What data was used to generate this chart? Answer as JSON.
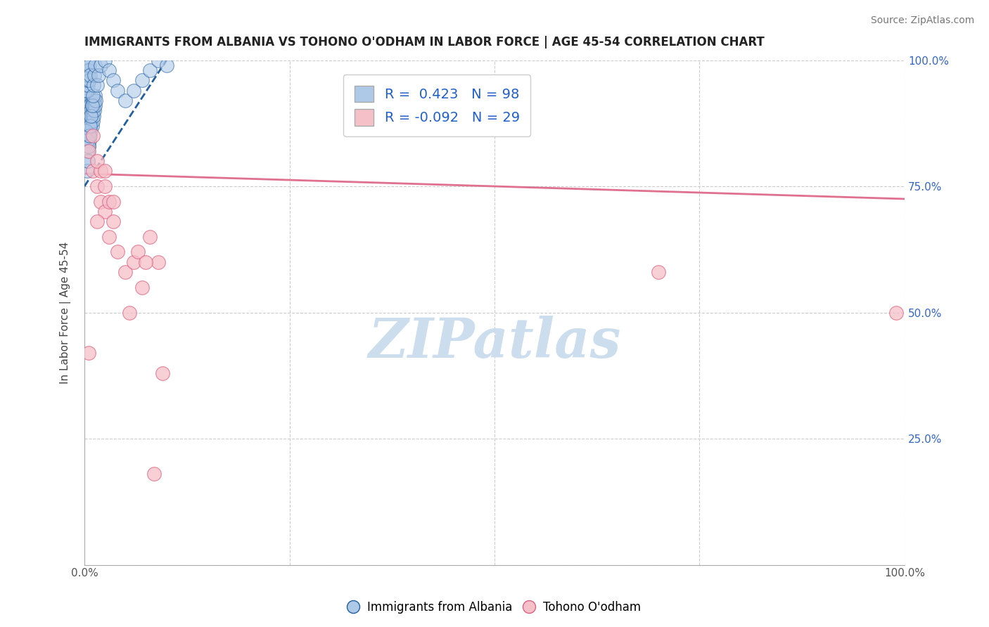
{
  "title": "IMMIGRANTS FROM ALBANIA VS TOHONO O'ODHAM IN LABOR FORCE | AGE 45-54 CORRELATION CHART",
  "source": "Source: ZipAtlas.com",
  "ylabel": "In Labor Force | Age 45-54",
  "xlim": [
    0,
    1.0
  ],
  "ylim": [
    0,
    1.0
  ],
  "xticks": [
    0,
    0.25,
    0.5,
    0.75,
    1.0
  ],
  "xticklabels": [
    "0.0%",
    "",
    "",
    "",
    "100.0%"
  ],
  "yticks": [
    0,
    0.25,
    0.5,
    0.75,
    1.0
  ],
  "yticklabels_left": [
    "",
    "",
    "",
    "",
    ""
  ],
  "yticklabels_right": [
    "",
    "25.0%",
    "50.0%",
    "75.0%",
    "100.0%"
  ],
  "albania_color": "#aec8e8",
  "albania_edge": "#2060a0",
  "tohono_color": "#f5c0c8",
  "tohono_edge": "#e06080",
  "trendline_albania_color": "#2060a0",
  "trendline_tohono_color": "#e07090",
  "R_albania": 0.423,
  "N_albania": 98,
  "R_tohono": -0.092,
  "N_tohono": 29,
  "watermark": "ZIPatlas",
  "watermark_color": "#ccdded",
  "legend_label_albania": "Immigrants from Albania",
  "legend_label_tohono": "Tohono O'odham",
  "albania_x": [
    0.001,
    0.001,
    0.001,
    0.002,
    0.002,
    0.002,
    0.002,
    0.002,
    0.003,
    0.003,
    0.003,
    0.003,
    0.003,
    0.003,
    0.003,
    0.004,
    0.004,
    0.004,
    0.004,
    0.004,
    0.004,
    0.005,
    0.005,
    0.005,
    0.005,
    0.005,
    0.006,
    0.006,
    0.006,
    0.006,
    0.007,
    0.007,
    0.007,
    0.007,
    0.008,
    0.008,
    0.008,
    0.009,
    0.009,
    0.009,
    0.01,
    0.01,
    0.01,
    0.011,
    0.011,
    0.012,
    0.012,
    0.013,
    0.013,
    0.014,
    0.001,
    0.002,
    0.002,
    0.003,
    0.003,
    0.004,
    0.004,
    0.005,
    0.005,
    0.006,
    0.001,
    0.002,
    0.003,
    0.003,
    0.004,
    0.004,
    0.005,
    0.006,
    0.006,
    0.007,
    0.002,
    0.003,
    0.003,
    0.004,
    0.005,
    0.006,
    0.007,
    0.008,
    0.009,
    0.01,
    0.011,
    0.012,
    0.013,
    0.015,
    0.017,
    0.02,
    0.025,
    0.03,
    0.035,
    0.04,
    0.05,
    0.06,
    0.07,
    0.08,
    0.09,
    0.1,
    0.003,
    0.004
  ],
  "albania_y": [
    0.88,
    0.9,
    0.92,
    0.85,
    0.87,
    0.89,
    0.91,
    0.93,
    0.83,
    0.85,
    0.87,
    0.89,
    0.91,
    0.93,
    0.95,
    0.82,
    0.84,
    0.86,
    0.88,
    0.9,
    0.92,
    0.83,
    0.85,
    0.87,
    0.89,
    0.91,
    0.84,
    0.86,
    0.88,
    0.9,
    0.85,
    0.87,
    0.89,
    0.91,
    0.86,
    0.88,
    0.9,
    0.87,
    0.89,
    0.91,
    0.88,
    0.9,
    0.92,
    0.89,
    0.91,
    0.9,
    0.92,
    0.91,
    0.93,
    0.92,
    0.94,
    0.95,
    0.96,
    0.94,
    0.97,
    0.95,
    0.98,
    0.96,
    0.99,
    0.97,
    0.97,
    0.98,
    0.96,
    0.99,
    0.97,
    1.0,
    0.98,
    0.96,
    0.99,
    0.97,
    0.86,
    0.84,
    0.82,
    0.8,
    0.83,
    0.85,
    0.87,
    0.89,
    0.91,
    0.93,
    0.95,
    0.97,
    0.99,
    0.95,
    0.97,
    0.99,
    1.0,
    0.98,
    0.96,
    0.94,
    0.92,
    0.94,
    0.96,
    0.98,
    1.0,
    0.99,
    0.78,
    0.8
  ],
  "tohono_x": [
    0.005,
    0.01,
    0.015,
    0.02,
    0.025,
    0.03,
    0.035,
    0.04,
    0.05,
    0.06,
    0.07,
    0.08,
    0.09,
    0.01,
    0.02,
    0.03,
    0.015,
    0.025,
    0.005,
    0.015,
    0.025,
    0.035,
    0.055,
    0.065,
    0.075,
    0.085,
    0.095,
    0.7,
    0.99
  ],
  "tohono_y": [
    0.82,
    0.78,
    0.75,
    0.72,
    0.7,
    0.65,
    0.68,
    0.62,
    0.58,
    0.6,
    0.55,
    0.65,
    0.6,
    0.85,
    0.78,
    0.72,
    0.8,
    0.75,
    0.42,
    0.68,
    0.78,
    0.72,
    0.5,
    0.62,
    0.6,
    0.18,
    0.38,
    0.58,
    0.5
  ],
  "trendline_albania_slope": 2.5,
  "trendline_albania_intercept": 0.75,
  "trendline_tohono_slope": -0.05,
  "trendline_tohono_intercept": 0.775
}
